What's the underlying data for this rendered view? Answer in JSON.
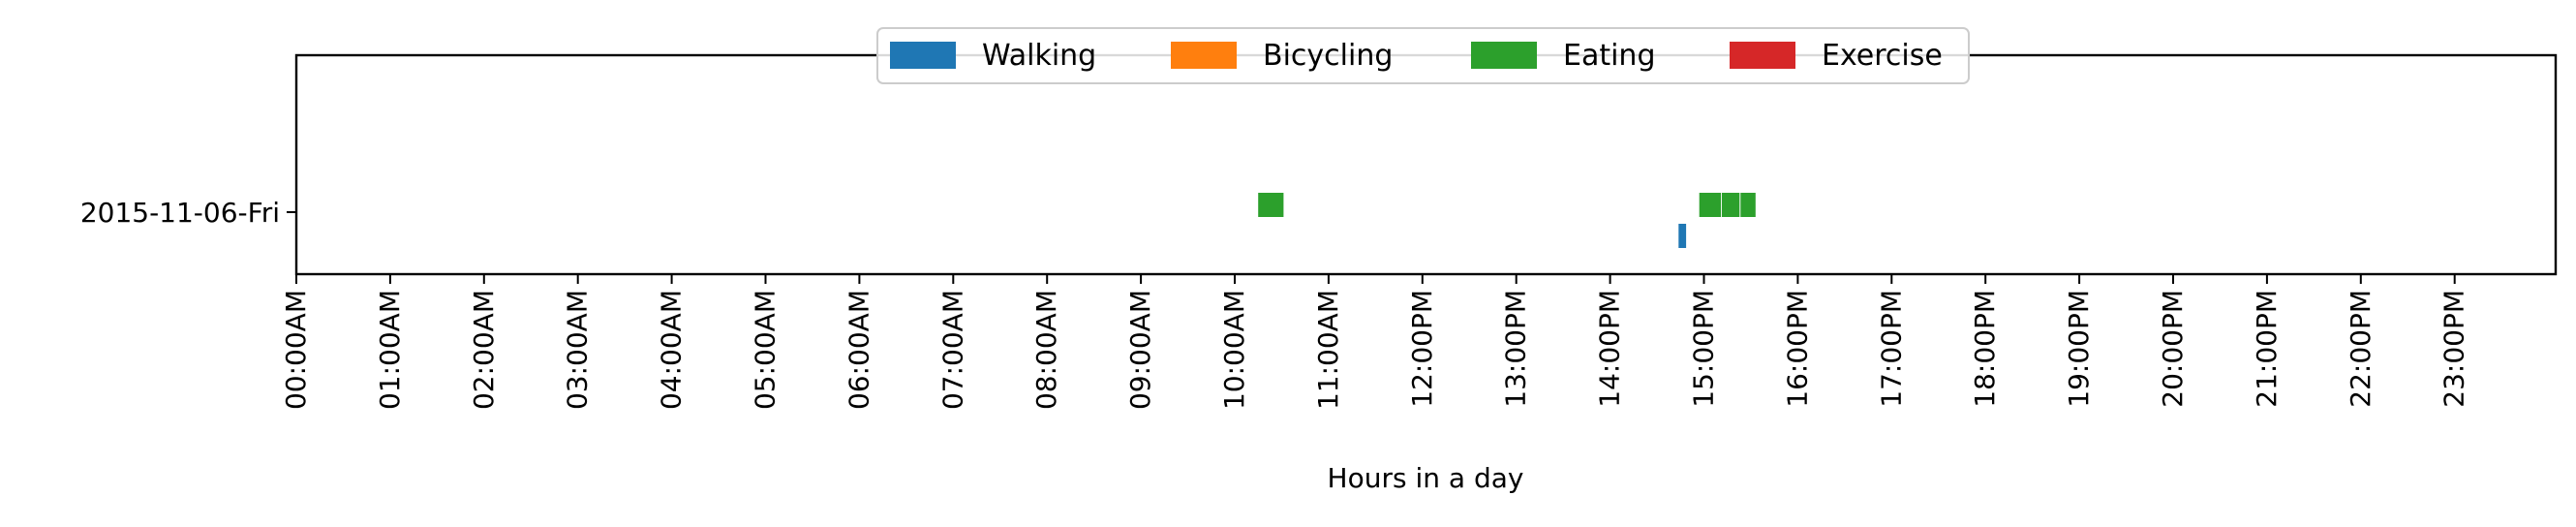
{
  "chart_data": {
    "type": "timeline",
    "title": "",
    "xlabel": "Hours in a day",
    "ylabel": "",
    "x_range_hours": [
      0,
      24
    ],
    "grid": false,
    "legend_position": "top-center",
    "rows": [
      "2015-11-06-Fri"
    ],
    "x_tick_labels": [
      "00:00AM",
      "01:00AM",
      "02:00AM",
      "03:00AM",
      "04:00AM",
      "05:00AM",
      "06:00AM",
      "07:00AM",
      "08:00AM",
      "09:00AM",
      "10:00AM",
      "11:00AM",
      "12:00PM",
      "13:00PM",
      "14:00PM",
      "15:00PM",
      "16:00PM",
      "17:00PM",
      "18:00PM",
      "19:00PM",
      "20:00PM",
      "21:00PM",
      "22:00PM",
      "23:00PM"
    ],
    "series": [
      {
        "name": "Walking",
        "color": "#1f77b4",
        "lane": "lower",
        "intervals": [
          [
            14.73,
            14.81
          ]
        ]
      },
      {
        "name": "Bicycling",
        "color": "#ff7f0e",
        "lane": "upper",
        "intervals": []
      },
      {
        "name": "Eating",
        "color": "#2ca02c",
        "lane": "upper",
        "intervals": [
          [
            10.25,
            10.52
          ],
          [
            14.95,
            15.18
          ],
          [
            15.19,
            15.38
          ],
          [
            15.39,
            15.55
          ]
        ]
      },
      {
        "name": "Exercise",
        "color": "#d62728",
        "lane": "upper",
        "intervals": []
      }
    ]
  }
}
